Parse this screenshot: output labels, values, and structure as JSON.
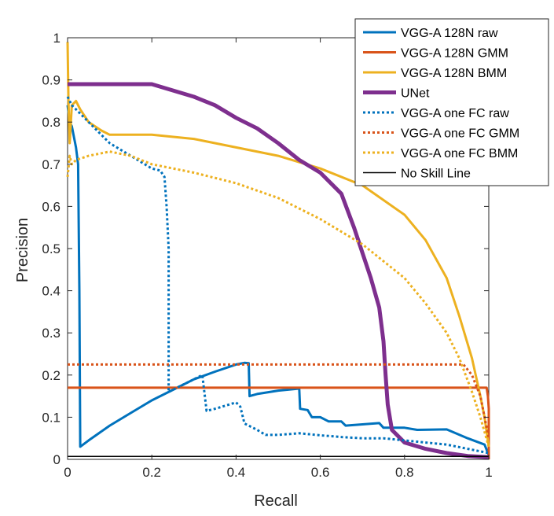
{
  "chart_data": {
    "type": "line",
    "xlabel": "Recall",
    "ylabel": "Precision",
    "xlim": [
      0,
      1
    ],
    "ylim": [
      0,
      1
    ],
    "xticks": [
      0,
      0.2,
      0.4,
      0.6,
      0.8,
      1
    ],
    "yticks": [
      0,
      0.1,
      0.2,
      0.3,
      0.4,
      0.5,
      0.6,
      0.7,
      0.8,
      0.9,
      1
    ],
    "xtick_labels": [
      "0",
      "0.2",
      "0.4",
      "0.6",
      "0.8",
      "1"
    ],
    "ytick_labels": [
      "0",
      "0.1",
      "0.2",
      "0.3",
      "0.4",
      "0.5",
      "0.6",
      "0.7",
      "0.8",
      "0.9",
      "1"
    ],
    "grid": false,
    "legend_position": "top-right",
    "series": [
      {
        "name": "VGG-A 128N raw",
        "color": "#0072BD",
        "style": "solid",
        "weight": "normal",
        "points": [
          [
            0,
            0.84
          ],
          [
            0.005,
            0.8
          ],
          [
            0.01,
            0.79
          ],
          [
            0.02,
            0.74
          ],
          [
            0.025,
            0.7
          ],
          [
            0.028,
            0.4
          ],
          [
            0.03,
            0.03
          ],
          [
            0.05,
            0.045
          ],
          [
            0.1,
            0.08
          ],
          [
            0.15,
            0.11
          ],
          [
            0.2,
            0.14
          ],
          [
            0.25,
            0.165
          ],
          [
            0.3,
            0.19
          ],
          [
            0.35,
            0.208
          ],
          [
            0.4,
            0.225
          ],
          [
            0.42,
            0.229
          ],
          [
            0.43,
            0.228
          ],
          [
            0.432,
            0.15
          ],
          [
            0.45,
            0.155
          ],
          [
            0.5,
            0.163
          ],
          [
            0.55,
            0.168
          ],
          [
            0.552,
            0.12
          ],
          [
            0.57,
            0.117
          ],
          [
            0.58,
            0.1
          ],
          [
            0.6,
            0.1
          ],
          [
            0.62,
            0.09
          ],
          [
            0.65,
            0.09
          ],
          [
            0.66,
            0.08
          ],
          [
            0.7,
            0.083
          ],
          [
            0.74,
            0.086
          ],
          [
            0.75,
            0.075
          ],
          [
            0.8,
            0.075
          ],
          [
            0.83,
            0.07
          ],
          [
            0.9,
            0.071
          ],
          [
            0.95,
            0.05
          ],
          [
            0.99,
            0.035
          ],
          [
            1,
            0.01
          ]
        ]
      },
      {
        "name": "VGG-A 128N GMM",
        "color": "#D95319",
        "style": "solid",
        "weight": "normal",
        "points": [
          [
            0,
            0.17
          ],
          [
            0.995,
            0.17
          ],
          [
            0.998,
            0.15
          ],
          [
            1,
            0.12
          ],
          [
            1,
            0.0
          ]
        ]
      },
      {
        "name": "VGG-A 128N BMM",
        "color": "#EDB120",
        "style": "solid",
        "weight": "normal",
        "points": [
          [
            0,
            0.99
          ],
          [
            0.002,
            0.85
          ],
          [
            0.005,
            0.75
          ],
          [
            0.01,
            0.84
          ],
          [
            0.02,
            0.85
          ],
          [
            0.03,
            0.83
          ],
          [
            0.05,
            0.8
          ],
          [
            0.08,
            0.78
          ],
          [
            0.1,
            0.77
          ],
          [
            0.15,
            0.77
          ],
          [
            0.2,
            0.77
          ],
          [
            0.3,
            0.76
          ],
          [
            0.4,
            0.74
          ],
          [
            0.5,
            0.72
          ],
          [
            0.6,
            0.69
          ],
          [
            0.7,
            0.65
          ],
          [
            0.8,
            0.58
          ],
          [
            0.85,
            0.52
          ],
          [
            0.9,
            0.43
          ],
          [
            0.93,
            0.34
          ],
          [
            0.96,
            0.24
          ],
          [
            0.98,
            0.15
          ],
          [
            0.99,
            0.1
          ],
          [
            1,
            0.03
          ]
        ]
      },
      {
        "name": "UNet",
        "color": "#7E2F8E",
        "style": "solid",
        "weight": "bold",
        "points": [
          [
            0,
            0.89
          ],
          [
            0.2,
            0.89
          ],
          [
            0.25,
            0.875
          ],
          [
            0.3,
            0.86
          ],
          [
            0.35,
            0.84
          ],
          [
            0.4,
            0.81
          ],
          [
            0.45,
            0.785
          ],
          [
            0.5,
            0.75
          ],
          [
            0.55,
            0.71
          ],
          [
            0.6,
            0.68
          ],
          [
            0.65,
            0.63
          ],
          [
            0.68,
            0.55
          ],
          [
            0.7,
            0.49
          ],
          [
            0.72,
            0.43
          ],
          [
            0.74,
            0.36
          ],
          [
            0.75,
            0.28
          ],
          [
            0.755,
            0.2
          ],
          [
            0.76,
            0.13
          ],
          [
            0.77,
            0.07
          ],
          [
            0.8,
            0.04
          ],
          [
            0.85,
            0.025
          ],
          [
            0.9,
            0.015
          ],
          [
            0.95,
            0.008
          ],
          [
            1,
            0.005
          ]
        ]
      },
      {
        "name": "VGG-A one FC raw",
        "color": "#0072BD",
        "style": "dotted",
        "weight": "normal",
        "points": [
          [
            0,
            0.86
          ],
          [
            0.01,
            0.84
          ],
          [
            0.03,
            0.82
          ],
          [
            0.05,
            0.8
          ],
          [
            0.08,
            0.77
          ],
          [
            0.1,
            0.75
          ],
          [
            0.15,
            0.72
          ],
          [
            0.2,
            0.69
          ],
          [
            0.22,
            0.685
          ],
          [
            0.23,
            0.67
          ],
          [
            0.235,
            0.6
          ],
          [
            0.24,
            0.5
          ],
          [
            0.24,
            0.16
          ],
          [
            0.3,
            0.19
          ],
          [
            0.32,
            0.2
          ],
          [
            0.33,
            0.115
          ],
          [
            0.35,
            0.12
          ],
          [
            0.4,
            0.135
          ],
          [
            0.41,
            0.125
          ],
          [
            0.42,
            0.085
          ],
          [
            0.43,
            0.08
          ],
          [
            0.45,
            0.07
          ],
          [
            0.47,
            0.058
          ],
          [
            0.5,
            0.058
          ],
          [
            0.55,
            0.062
          ],
          [
            0.6,
            0.057
          ],
          [
            0.65,
            0.053
          ],
          [
            0.7,
            0.05
          ],
          [
            0.75,
            0.05
          ],
          [
            0.8,
            0.045
          ],
          [
            0.85,
            0.04
          ],
          [
            0.9,
            0.035
          ],
          [
            0.95,
            0.025
          ],
          [
            1,
            0.015
          ]
        ]
      },
      {
        "name": "VGG-A one FC GMM",
        "color": "#D95319",
        "style": "dotted",
        "weight": "normal",
        "points": [
          [
            0,
            0.225
          ],
          [
            0.94,
            0.225
          ],
          [
            0.96,
            0.2
          ],
          [
            0.98,
            0.15
          ],
          [
            1,
            0.05
          ]
        ]
      },
      {
        "name": "VGG-A one FC BMM",
        "color": "#EDB120",
        "style": "dotted",
        "weight": "normal",
        "points": [
          [
            0,
            0.67
          ],
          [
            0.005,
            0.72
          ],
          [
            0.01,
            0.7
          ],
          [
            0.02,
            0.71
          ],
          [
            0.05,
            0.72
          ],
          [
            0.1,
            0.73
          ],
          [
            0.15,
            0.72
          ],
          [
            0.2,
            0.7
          ],
          [
            0.3,
            0.68
          ],
          [
            0.4,
            0.655
          ],
          [
            0.5,
            0.62
          ],
          [
            0.6,
            0.57
          ],
          [
            0.7,
            0.51
          ],
          [
            0.8,
            0.43
          ],
          [
            0.85,
            0.37
          ],
          [
            0.9,
            0.3
          ],
          [
            0.93,
            0.24
          ],
          [
            0.96,
            0.16
          ],
          [
            0.98,
            0.1
          ],
          [
            1,
            0.03
          ]
        ]
      },
      {
        "name": "No Skill Line",
        "color": "#000000",
        "style": "solid",
        "weight": "thin",
        "points": [
          [
            0,
            0.007
          ],
          [
            1,
            0.007
          ]
        ]
      }
    ]
  }
}
